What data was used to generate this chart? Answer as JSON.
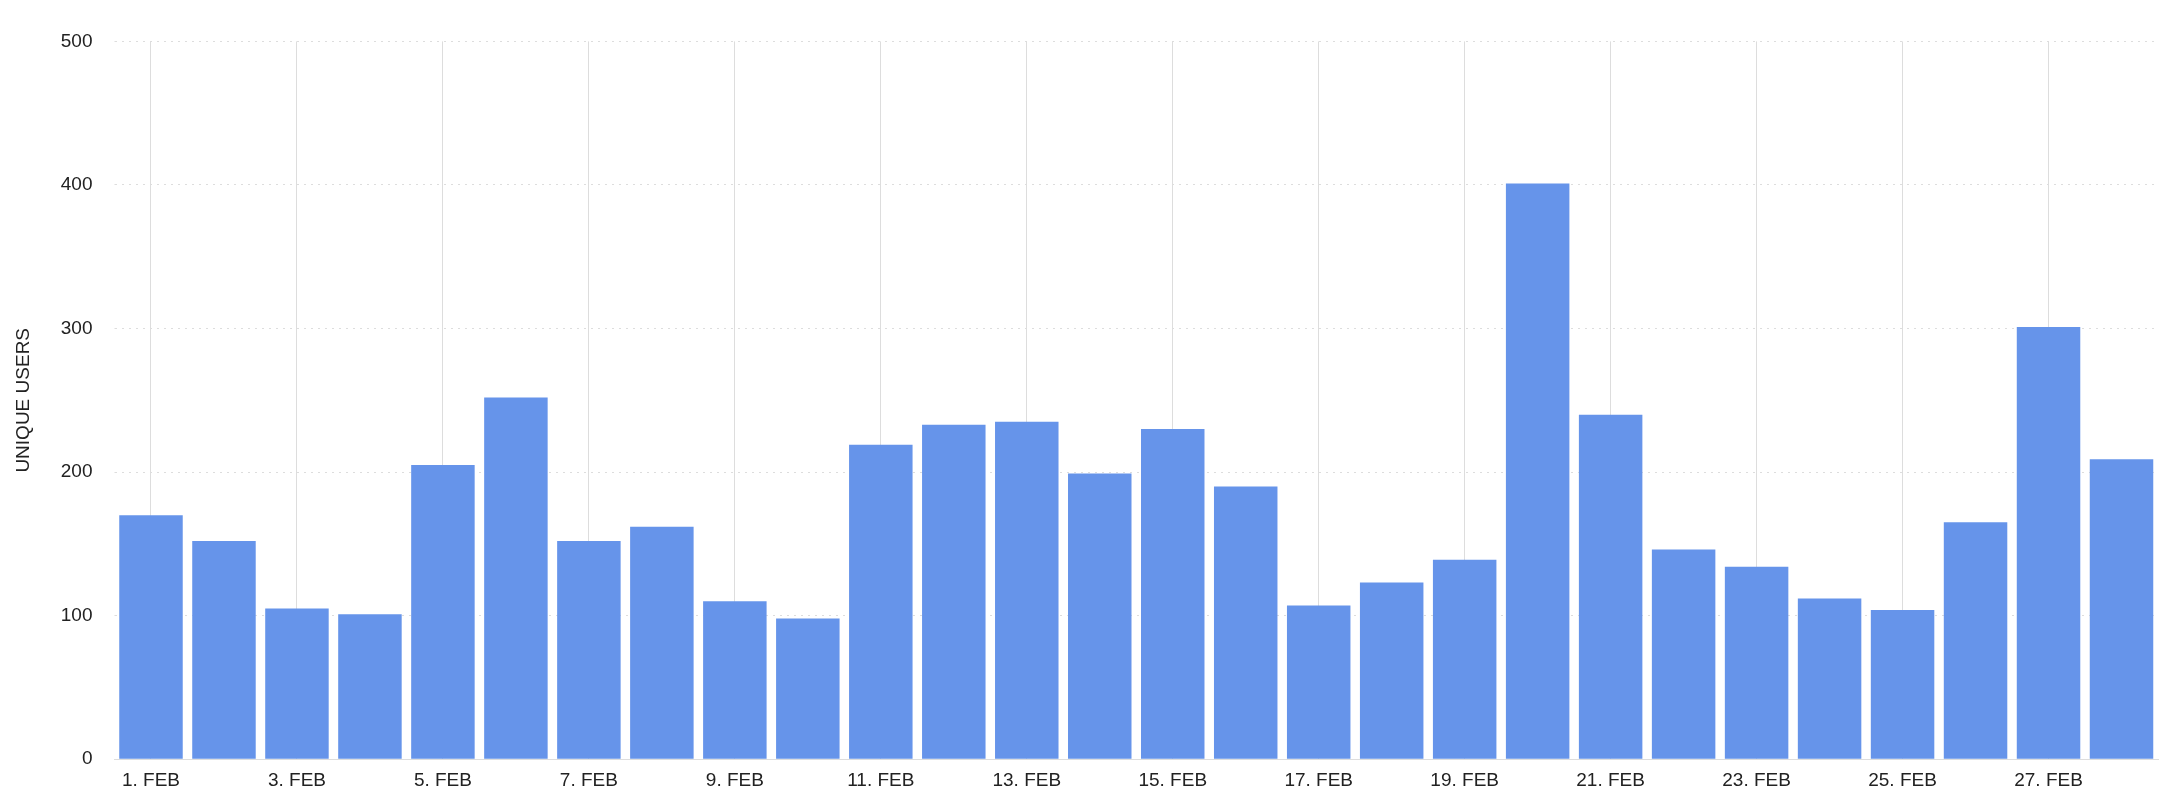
{
  "chart_data": {
    "type": "bar",
    "ylabel": "UNIQUE USERS",
    "categories": [
      "1. FEB",
      null,
      "3. FEB",
      null,
      "5. FEB",
      null,
      "7. FEB",
      null,
      "9. FEB",
      null,
      "11. FEB",
      null,
      "13. FEB",
      null,
      "15. FEB",
      null,
      "17. FEB",
      null,
      "19. FEB",
      null,
      "21. FEB",
      null,
      "23. FEB",
      null,
      "25. FEB",
      null,
      "27. FEB",
      null
    ],
    "values": [
      170,
      152,
      105,
      101,
      205,
      252,
      152,
      162,
      110,
      98,
      219,
      233,
      235,
      199,
      230,
      190,
      107,
      123,
      139,
      401,
      240,
      146,
      134,
      112,
      104,
      165,
      301,
      209
    ],
    "color": "#6694ea",
    "ylim": [
      0,
      500
    ],
    "yticks": [
      0,
      100,
      200,
      300,
      400,
      500
    ],
    "grid": true,
    "legend": false
  }
}
